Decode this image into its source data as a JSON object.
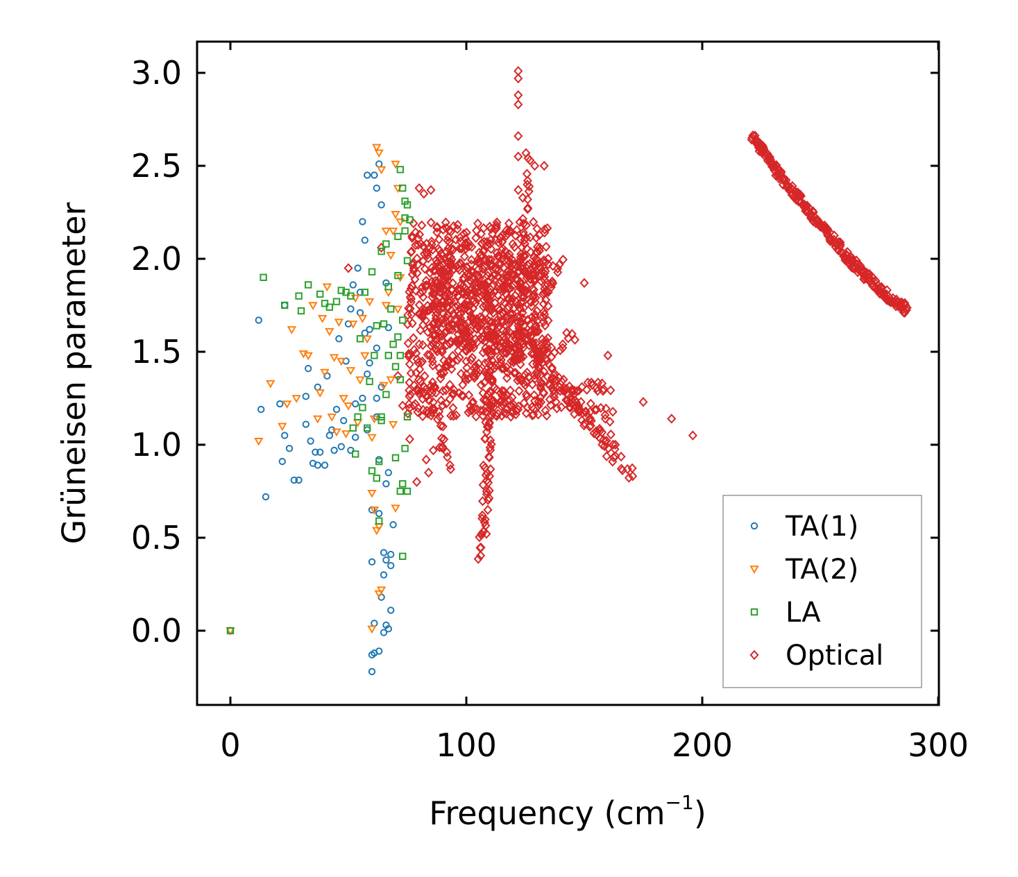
{
  "chart_data": {
    "type": "scatter",
    "title": "",
    "xlabel": "Frequency (cm",
    "xlabel_sup": "−1",
    "xlabel_close": ")",
    "ylabel": "Grüneisen parameter",
    "xlim": [
      -14,
      300
    ],
    "ylim": [
      -0.4,
      3.17
    ],
    "xticks": [
      0,
      100,
      200,
      300
    ],
    "xtick_labels": [
      "0",
      "100",
      "200",
      "300"
    ],
    "yticks": [
      0.0,
      0.5,
      1.0,
      1.5,
      2.0,
      2.5,
      3.0
    ],
    "ytick_labels": [
      "0.0",
      "0.5",
      "1.0",
      "1.5",
      "2.0",
      "2.5",
      "3.0"
    ],
    "legend_position": "bottom-right",
    "series": [
      {
        "name": "TA(1)",
        "marker": "circle",
        "color": "#1f77b4",
        "points": [
          [
            0,
            0
          ],
          [
            12,
            1.67
          ],
          [
            13,
            1.19
          ],
          [
            15,
            0.72
          ],
          [
            21,
            1.22
          ],
          [
            22,
            0.91
          ],
          [
            23,
            1.05
          ],
          [
            23,
            1.75
          ],
          [
            25,
            0.98
          ],
          [
            27,
            0.81
          ],
          [
            29,
            0.81
          ],
          [
            32,
            1.11
          ],
          [
            32,
            1.26
          ],
          [
            33,
            1.41
          ],
          [
            34,
            1.02
          ],
          [
            35,
            0.9
          ],
          [
            36,
            0.96
          ],
          [
            37,
            0.89
          ],
          [
            37,
            1.31
          ],
          [
            38,
            0.96
          ],
          [
            40,
            0.89
          ],
          [
            41,
            1.37
          ],
          [
            42,
            1.05
          ],
          [
            43,
            1.08
          ],
          [
            44,
            0.97
          ],
          [
            45,
            1.19
          ],
          [
            46,
            1.57
          ],
          [
            47,
            0.99
          ],
          [
            48,
            1.13
          ],
          [
            49,
            1.45
          ],
          [
            50,
            1.65
          ],
          [
            51,
            1.73
          ],
          [
            52,
            1.86
          ],
          [
            53,
            1.04
          ],
          [
            54,
            1.95
          ],
          [
            55,
            1.82
          ],
          [
            56,
            1.25
          ],
          [
            57,
            1.6
          ],
          [
            58,
            1.08
          ],
          [
            59,
            1.44
          ],
          [
            60,
            0.65
          ],
          [
            60,
            -0.22
          ],
          [
            60,
            -0.13
          ],
          [
            60,
            0.37
          ],
          [
            61,
            0.04
          ],
          [
            61,
            2.45
          ],
          [
            62,
            2.38
          ],
          [
            62,
            1.52
          ],
          [
            63,
            0.63
          ],
          [
            63,
            2.51
          ],
          [
            64,
            0.18
          ],
          [
            64,
            2.29
          ],
          [
            65,
            0.42
          ],
          [
            65,
            -0.01
          ],
          [
            65,
            0.3
          ],
          [
            66,
            0.03
          ],
          [
            66,
            1.87
          ],
          [
            67,
            1.63
          ],
          [
            67,
            0.85
          ],
          [
            68,
            0.35
          ],
          [
            68,
            0.11
          ],
          [
            69,
            0.57
          ],
          [
            62,
            1.15
          ],
          [
            63,
            0.92
          ],
          [
            64,
            1.31
          ],
          [
            58,
            1.38
          ],
          [
            55,
            1.71
          ],
          [
            53,
            1.22
          ],
          [
            51,
            0.97
          ],
          [
            66,
            0.38
          ],
          [
            67,
            0.01
          ],
          [
            61,
            -0.12
          ],
          [
            63,
            -0.11
          ],
          [
            68,
            0.41
          ],
          [
            58,
            2.45
          ],
          [
            56,
            2.2
          ],
          [
            57,
            2.1
          ],
          [
            62,
            1.25
          ],
          [
            66,
            0.79
          ],
          [
            59,
            1.62
          ]
        ]
      },
      {
        "name": "TA(2)",
        "marker": "triangle",
        "color": "#ff7f0e",
        "points": [
          [
            0,
            0
          ],
          [
            12,
            1.02
          ],
          [
            17,
            1.33
          ],
          [
            22,
            1.1
          ],
          [
            24,
            1.22
          ],
          [
            26,
            1.62
          ],
          [
            28,
            1.25
          ],
          [
            31,
            1.49
          ],
          [
            33,
            1.48
          ],
          [
            35,
            1.75
          ],
          [
            37,
            1.14
          ],
          [
            38,
            1.28
          ],
          [
            39,
            1.68
          ],
          [
            40,
            1.39
          ],
          [
            41,
            1.85
          ],
          [
            42,
            1.61
          ],
          [
            43,
            1.15
          ],
          [
            44,
            1.47
          ],
          [
            45,
            1.07
          ],
          [
            46,
            1.66
          ],
          [
            47,
            1.45
          ],
          [
            48,
            1.25
          ],
          [
            49,
            1.06
          ],
          [
            50,
            1.21
          ],
          [
            51,
            1.4
          ],
          [
            52,
            1.65
          ],
          [
            53,
            1.79
          ],
          [
            54,
            1.12
          ],
          [
            55,
            1.35
          ],
          [
            56,
            1.68
          ],
          [
            57,
            1.48
          ],
          [
            58,
            1.57
          ],
          [
            59,
            1.77
          ],
          [
            60,
            1.04
          ],
          [
            60,
            0.01
          ],
          [
            61,
            0.65
          ],
          [
            62,
            0.54
          ],
          [
            63,
            0.56
          ],
          [
            63,
            0.2
          ],
          [
            64,
            0.22
          ],
          [
            62,
            2.6
          ],
          [
            63,
            2.57
          ],
          [
            64,
            2.48
          ],
          [
            66,
            2.15
          ],
          [
            67,
            1.82
          ],
          [
            68,
            2.02
          ],
          [
            69,
            2.15
          ],
          [
            70,
            2.51
          ],
          [
            70,
            0.66
          ],
          [
            71,
            2.38
          ],
          [
            71,
            1.73
          ],
          [
            72,
            1.9
          ],
          [
            72,
            2.2
          ],
          [
            60,
            0.74
          ],
          [
            61,
            1.14
          ],
          [
            65,
            1.32
          ],
          [
            66,
            1.75
          ],
          [
            68,
            1.35
          ],
          [
            69,
            1.11
          ],
          [
            70,
            2.24
          ]
        ]
      },
      {
        "name": "LA",
        "marker": "square",
        "color": "#2ca02c",
        "points": [
          [
            0,
            0
          ],
          [
            14,
            1.9
          ],
          [
            23,
            1.75
          ],
          [
            29,
            1.8
          ],
          [
            30,
            1.72
          ],
          [
            33,
            1.86
          ],
          [
            38,
            1.81
          ],
          [
            40,
            1.76
          ],
          [
            42,
            1.74
          ],
          [
            45,
            1.77
          ],
          [
            47,
            1.83
          ],
          [
            49,
            1.82
          ],
          [
            51,
            1.8
          ],
          [
            52,
            1.09
          ],
          [
            53,
            0.95
          ],
          [
            54,
            1.15
          ],
          [
            55,
            1.57
          ],
          [
            56,
            1.2
          ],
          [
            57,
            1.82
          ],
          [
            58,
            1.09
          ],
          [
            59,
            1.34
          ],
          [
            60,
            0.86
          ],
          [
            60,
            1.93
          ],
          [
            61,
            1.48
          ],
          [
            62,
            1.64
          ],
          [
            63,
            0.59
          ],
          [
            64,
            2.04
          ],
          [
            64,
            1.15
          ],
          [
            65,
            1.65
          ],
          [
            66,
            2.08
          ],
          [
            66,
            1.27
          ],
          [
            67,
            1.48
          ],
          [
            67,
            1.85
          ],
          [
            68,
            1.73
          ],
          [
            69,
            1.54
          ],
          [
            70,
            1.42
          ],
          [
            70,
            0.93
          ],
          [
            71,
            1.58
          ],
          [
            71,
            2.12
          ],
          [
            72,
            2.48
          ],
          [
            72,
            0.75
          ],
          [
            72,
            1.35
          ],
          [
            73,
            0.4
          ],
          [
            73,
            2.38
          ],
          [
            73,
            0.79
          ],
          [
            74,
            2.22
          ],
          [
            74,
            0.98
          ],
          [
            74,
            2.15
          ],
          [
            75,
            1.15
          ],
          [
            75,
            0.75
          ],
          [
            75,
            2.29
          ],
          [
            76,
            2.21
          ],
          [
            62,
            0.82
          ],
          [
            63,
            0.91
          ],
          [
            64,
            1.13
          ],
          [
            72,
            1.48
          ],
          [
            73,
            1.67
          ],
          [
            74,
            2.31
          ],
          [
            75,
            1.99
          ],
          [
            71,
            1.91
          ]
        ]
      },
      {
        "name": "Optical",
        "marker": "diamond",
        "color": "#d62728",
        "clusters": [
          {
            "x": [
              75,
              135
            ],
            "y": [
              1.15,
              2.2
            ],
            "n": 800
          },
          {
            "x": [
              85,
              130
            ],
            "y": [
              1.5,
              2.0
            ],
            "n": 300
          }
        ],
        "arms": [
          {
            "from": [
              130,
              1.5
            ],
            "to": [
              170,
              0.82
            ],
            "n": 40
          },
          {
            "from": [
              130,
              1.4
            ],
            "to": [
              165,
              0.95
            ],
            "n": 35
          },
          {
            "from": [
              132,
              1.25
            ],
            "to": [
              162,
              1.15
            ],
            "n": 30
          },
          {
            "from": [
              135,
              1.32
            ],
            "to": [
              160,
              1.3
            ],
            "n": 25
          },
          {
            "from": [
              130,
              1.45
            ],
            "to": [
              145,
              1.6
            ],
            "n": 15
          },
          {
            "from": [
              128,
              1.6
            ],
            "to": [
              140,
              2.0
            ],
            "n": 20
          },
          {
            "from": [
              122,
              1.4
            ],
            "to": [
              126,
              2.55
            ],
            "n": 30
          },
          {
            "from": [
              112,
              1.5
            ],
            "to": [
              106,
              0.38
            ],
            "n": 45
          },
          {
            "from": [
              110,
              1.4
            ],
            "to": [
              108,
              0.55
            ],
            "n": 20
          },
          {
            "from": [
              88,
              1.1
            ],
            "to": [
              92,
              0.9
            ],
            "n": 12
          }
        ],
        "curve": {
          "from": [
            221,
            2.66
          ],
          "to": [
            287,
            1.73
          ],
          "n": 250
        },
        "points": [
          [
            122,
            3.01
          ],
          [
            122,
            2.97
          ],
          [
            122,
            2.88
          ],
          [
            122,
            2.83
          ],
          [
            122,
            2.66
          ],
          [
            122,
            2.55
          ],
          [
            127,
            2.53
          ],
          [
            129,
            2.5
          ],
          [
            133,
            2.5
          ],
          [
            126,
            2.42
          ],
          [
            122,
            2.37
          ],
          [
            126,
            2.32
          ],
          [
            160,
            1.48
          ],
          [
            150,
            1.87
          ],
          [
            175,
            1.23
          ],
          [
            187,
            1.14
          ],
          [
            196,
            1.05
          ],
          [
            85,
            2.37
          ],
          [
            82,
            2.35
          ],
          [
            80,
            2.38
          ],
          [
            79,
            0.8
          ],
          [
            84,
            0.85
          ],
          [
            86,
            0.97
          ],
          [
            83,
            0.92
          ],
          [
            73,
            1.21
          ],
          [
            71,
            1.37
          ],
          [
            76,
            1.03
          ],
          [
            50,
            1.95
          ],
          [
            64,
            2.06
          ]
        ]
      }
    ]
  }
}
